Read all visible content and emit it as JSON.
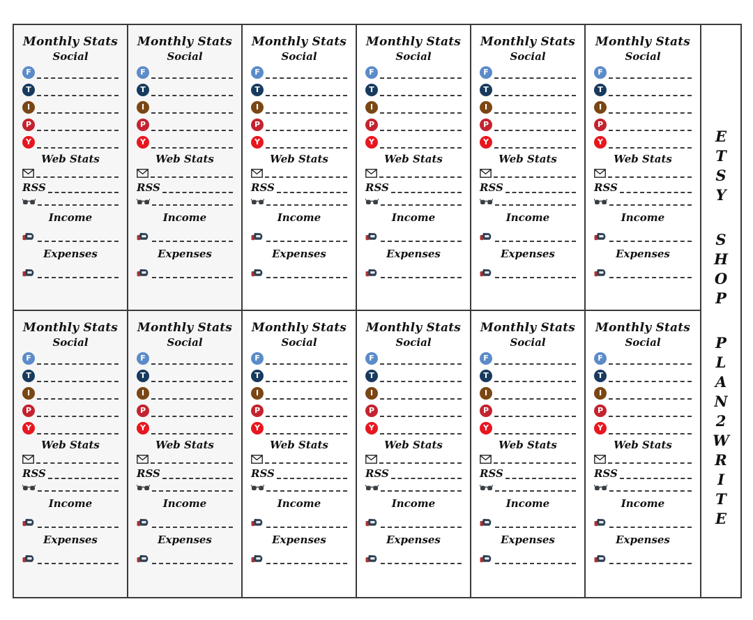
{
  "page": {
    "background": "#ffffff",
    "border_color": "#3a3a3a"
  },
  "grid": {
    "rows": 2,
    "cols": 6,
    "card_count": 12
  },
  "card": {
    "title": "Monthly Stats",
    "social_heading": "Social",
    "social_items": [
      {
        "name": "facebook",
        "letter": "F",
        "color": "#5b8bc9"
      },
      {
        "name": "twitter",
        "letter": "T",
        "color": "#173a5e"
      },
      {
        "name": "instagram",
        "letter": "I",
        "color": "#7a4613"
      },
      {
        "name": "pinterest",
        "letter": "P",
        "color": "#c32330"
      },
      {
        "name": "youtube",
        "letter": "Y",
        "color": "#e8171f"
      }
    ],
    "web_heading": "Web Stats",
    "rss_label": "RSS",
    "income_heading": "Income",
    "expenses_heading": "Expenses",
    "icons": {
      "envelope": "✉",
      "glasses": "👓",
      "money": "💰"
    }
  },
  "sidebar": {
    "text": "ETSY SHOP PLAN2WRITE",
    "groups": [
      {
        "word": "ETSY",
        "letters": [
          "E",
          "T",
          "S",
          "Y"
        ]
      },
      {
        "word": "SHOP",
        "letters": [
          "S",
          "H",
          "O",
          "P"
        ]
      },
      {
        "word": "PLAN2WRITE",
        "letters": [
          "P",
          "L",
          "A",
          "N",
          "2",
          "W",
          "R",
          "I",
          "T",
          "E"
        ]
      }
    ]
  }
}
